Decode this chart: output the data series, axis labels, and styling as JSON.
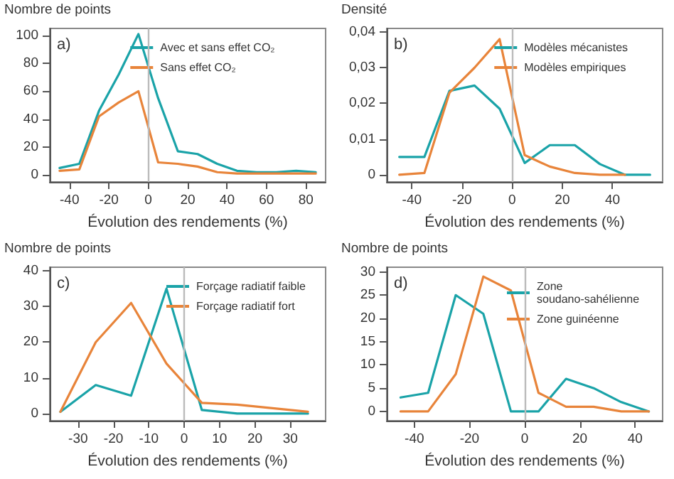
{
  "chart_data": [
    {
      "type": "line",
      "ylabel": "Nombre de points",
      "xlabel": "Évolution des rendements (%)",
      "annotations": [
        "a)"
      ],
      "legend": "top right",
      "marker": "none",
      "line_style": "solid",
      "x": [
        -45,
        -35,
        -25,
        -15,
        -5,
        5,
        15,
        25,
        35,
        45,
        55,
        65,
        75,
        85
      ],
      "xlim": [
        -50,
        90
      ],
      "xticks": [
        -40,
        -20,
        0,
        20,
        40,
        60,
        80
      ],
      "ylim": [
        -5,
        105
      ],
      "yticks": [
        0,
        20,
        40,
        60,
        80,
        100
      ],
      "ref_lines": [
        {
          "axis": "x",
          "value": 0,
          "color": "#bbbbbb"
        }
      ],
      "series": [
        {
          "name": "Avec et sans effet CO₂",
          "color": "#1aa3a8",
          "values": [
            5,
            8,
            46,
            72,
            101,
            55,
            17,
            15,
            8,
            3,
            2,
            2,
            3,
            2
          ]
        },
        {
          "name": "Sans effet CO₂",
          "color": "#e8843a",
          "values": [
            3,
            4,
            42,
            52,
            60,
            9,
            8,
            6,
            2,
            1,
            1,
            1,
            1,
            1
          ]
        }
      ]
    },
    {
      "type": "line",
      "ylabel": "Densité",
      "xlabel": "Évolution des rendements (%)",
      "annotations": [
        "b)"
      ],
      "legend": "top right",
      "marker": "none",
      "line_style": "solid",
      "x": [
        -45,
        -35,
        -25,
        -15,
        -5,
        5,
        15,
        25,
        35,
        45,
        55
      ],
      "xlim": [
        -50,
        60
      ],
      "xticks": [
        -40,
        -20,
        0,
        20,
        40
      ],
      "ylim": [
        -0.002,
        0.041
      ],
      "yticks": [
        {
          "value": 0,
          "label": "0"
        },
        {
          "value": 0.01,
          "label": "0,01"
        },
        {
          "value": 0.02,
          "label": "0,02"
        },
        {
          "value": 0.03,
          "label": "0,03"
        },
        {
          "value": 0.04,
          "label": "0,04"
        }
      ],
      "ref_lines": [
        {
          "axis": "x",
          "value": 0,
          "color": "#bbbbbb"
        }
      ],
      "series": [
        {
          "name": "Modèles mécanistes",
          "color": "#1aa3a8",
          "values": [
            0.005,
            0.005,
            0.0235,
            0.025,
            0.0185,
            0.0033,
            0.0083,
            0.0083,
            0.003,
            0,
            0
          ]
        },
        {
          "name": "Modèles empiriques",
          "color": "#e8843a",
          "values": [
            0,
            0.0005,
            0.023,
            0.03,
            0.038,
            0.0055,
            0.0023,
            0.0005,
            0,
            0,
            null
          ]
        }
      ]
    },
    {
      "type": "line",
      "ylabel": "Nombre de points",
      "xlabel": "Évolution des rendements (%)",
      "annotations": [
        "c)"
      ],
      "legend": "top right",
      "marker": "none",
      "line_style": "solid",
      "x": [
        -35,
        -25,
        -15,
        -5,
        5,
        15,
        25,
        35
      ],
      "xlim": [
        -38,
        40
      ],
      "xticks": [
        -30,
        -20,
        -10,
        0,
        10,
        20,
        30
      ],
      "ylim": [
        -2,
        41
      ],
      "yticks": [
        0,
        10,
        20,
        30,
        40
      ],
      "ref_lines": [
        {
          "axis": "x",
          "value": 0,
          "color": "#bbbbbb"
        }
      ],
      "series": [
        {
          "name": "Forçage radiatif faible",
          "color": "#1aa3a8",
          "values": [
            0.5,
            8,
            5,
            35,
            1,
            0,
            0,
            0
          ]
        },
        {
          "name": "Forçage radiatif fort",
          "color": "#e8843a",
          "values": [
            0.5,
            20,
            31,
            14,
            3,
            2.5,
            1.5,
            0.5
          ]
        }
      ]
    },
    {
      "type": "line",
      "ylabel": "Nombre de points",
      "xlabel": "Évolution des rendements (%)",
      "annotations": [
        "d)"
      ],
      "legend": "top right",
      "marker": "none",
      "line_style": "solid",
      "x": [
        -45,
        -35,
        -25,
        -15,
        -5,
        5,
        15,
        25,
        35,
        45
      ],
      "xlim": [
        -50,
        50
      ],
      "xticks": [
        -40,
        -20,
        0,
        20,
        40
      ],
      "ylim": [
        -2,
        31
      ],
      "yticks": [
        0,
        5,
        10,
        15,
        20,
        25,
        30
      ],
      "ref_lines": [
        {
          "axis": "x",
          "value": 0,
          "color": "#bbbbbb"
        }
      ],
      "series": [
        {
          "name": "Zone soudano-sahélienne",
          "color": "#1aa3a8",
          "values": [
            3,
            4,
            25,
            21,
            0,
            0,
            7,
            5,
            2,
            0
          ]
        },
        {
          "name": "Zone guinéenne",
          "color": "#e8843a",
          "values": [
            0,
            0,
            8,
            29,
            26,
            4,
            1,
            1,
            0,
            0
          ]
        }
      ]
    }
  ]
}
